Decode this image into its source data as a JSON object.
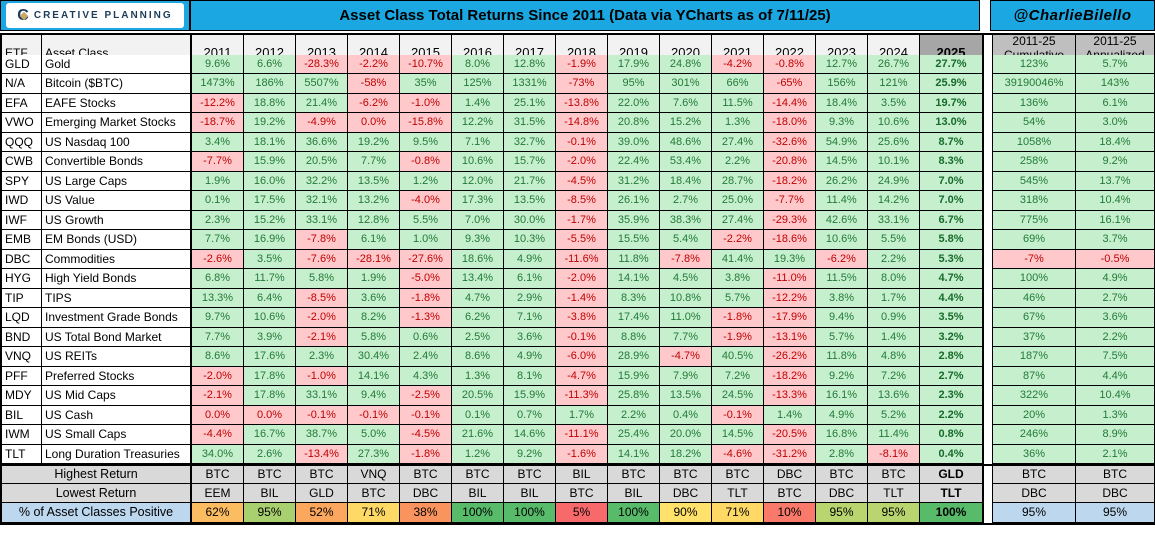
{
  "banner": {
    "logo_text": "CREATIVE PLANNING",
    "logo_mark": "C",
    "title": "Asset Class Total Returns Since 2011 (Data via YCharts as of 7/11/25)",
    "handle": "@CharlieBilello"
  },
  "colors": {
    "banner_blue": "#1BA8E2",
    "positive_bg": "#C6EFCE",
    "positive_text": "#217A36",
    "negative_bg": "#FFC9CC",
    "negative_text": "#C00000",
    "header_2025_bg": "#A6A6A6",
    "right_header_bg": "#BFBFBF",
    "footer_gray": "#D9D9D9",
    "footer_blue": "#BDD7EE"
  },
  "chart_data": {
    "type": "table",
    "title": "Asset Class Total Returns Since 2011 (Data via YCharts as of 7/11/25)",
    "corner_headers": [
      "ETF",
      "Asset Class"
    ],
    "year_headers": [
      "2011",
      "2012",
      "2013",
      "2014",
      "2015",
      "2016",
      "2017",
      "2018",
      "2019",
      "2020",
      "2021",
      "2022",
      "2023",
      "2024",
      "2025"
    ],
    "right_headers": [
      [
        "2011-25",
        "Cumulative"
      ],
      [
        "2011-25",
        "Annualized"
      ]
    ],
    "rows": [
      {
        "etf": "GLD",
        "name": "Gold",
        "cells": [
          "9.6%",
          "6.6%",
          "-28.3%",
          "-2.2%",
          "-10.7%",
          "8.0%",
          "12.8%",
          "-1.9%",
          "17.9%",
          "24.8%",
          "-4.2%",
          "-0.8%",
          "12.7%",
          "26.7%",
          "27.7%"
        ],
        "cum": "123%",
        "ann": "5.7%"
      },
      {
        "etf": "N/A",
        "name": "Bitcoin ($BTC)",
        "cells": [
          "1473%",
          "186%",
          "5507%",
          "-58%",
          "35%",
          "125%",
          "1331%",
          "-73%",
          "95%",
          "301%",
          "66%",
          "-65%",
          "156%",
          "121%",
          "25.9%"
        ],
        "cum": "39190046%",
        "ann": "143%"
      },
      {
        "etf": "EFA",
        "name": "EAFE Stocks",
        "cells": [
          "-12.2%",
          "18.8%",
          "21.4%",
          "-6.2%",
          "-1.0%",
          "1.4%",
          "25.1%",
          "-13.8%",
          "22.0%",
          "7.6%",
          "11.5%",
          "-14.4%",
          "18.4%",
          "3.5%",
          "19.7%"
        ],
        "cum": "136%",
        "ann": "6.1%"
      },
      {
        "etf": "VWO",
        "name": "Emerging Market Stocks",
        "cells": [
          "-18.7%",
          "19.2%",
          "-4.9%",
          "0.0%",
          "-15.8%",
          "12.2%",
          "31.5%",
          "-14.8%",
          "20.8%",
          "15.2%",
          "1.3%",
          "-18.0%",
          "9.3%",
          "10.6%",
          "13.0%"
        ],
        "cum": "54%",
        "ann": "3.0%",
        "neg_overrides": [
          3
        ]
      },
      {
        "etf": "QQQ",
        "name": "US Nasdaq 100",
        "cells": [
          "3.4%",
          "18.1%",
          "36.6%",
          "19.2%",
          "9.5%",
          "7.1%",
          "32.7%",
          "-0.1%",
          "39.0%",
          "48.6%",
          "27.4%",
          "-32.6%",
          "54.9%",
          "25.6%",
          "8.7%"
        ],
        "cum": "1058%",
        "ann": "18.4%"
      },
      {
        "etf": "CWB",
        "name": "Convertible Bonds",
        "cells": [
          "-7.7%",
          "15.9%",
          "20.5%",
          "7.7%",
          "-0.8%",
          "10.6%",
          "15.7%",
          "-2.0%",
          "22.4%",
          "53.4%",
          "2.2%",
          "-20.8%",
          "14.5%",
          "10.1%",
          "8.3%"
        ],
        "cum": "258%",
        "ann": "9.2%"
      },
      {
        "etf": "SPY",
        "name": "US Large Caps",
        "cells": [
          "1.9%",
          "16.0%",
          "32.2%",
          "13.5%",
          "1.2%",
          "12.0%",
          "21.7%",
          "-4.5%",
          "31.2%",
          "18.4%",
          "28.7%",
          "-18.2%",
          "26.2%",
          "24.9%",
          "7.0%"
        ],
        "cum": "545%",
        "ann": "13.7%"
      },
      {
        "etf": "IWD",
        "name": "US Value",
        "cells": [
          "0.1%",
          "17.5%",
          "32.1%",
          "13.2%",
          "-4.0%",
          "17.3%",
          "13.5%",
          "-8.5%",
          "26.1%",
          "2.7%",
          "25.0%",
          "-7.7%",
          "11.4%",
          "14.2%",
          "7.0%"
        ],
        "cum": "318%",
        "ann": "10.4%"
      },
      {
        "etf": "IWF",
        "name": "US Growth",
        "cells": [
          "2.3%",
          "15.2%",
          "33.1%",
          "12.8%",
          "5.5%",
          "7.0%",
          "30.0%",
          "-1.7%",
          "35.9%",
          "38.3%",
          "27.4%",
          "-29.3%",
          "42.6%",
          "33.1%",
          "6.7%"
        ],
        "cum": "775%",
        "ann": "16.1%"
      },
      {
        "etf": "EMB",
        "name": "EM Bonds (USD)",
        "cells": [
          "7.7%",
          "16.9%",
          "-7.8%",
          "6.1%",
          "1.0%",
          "9.3%",
          "10.3%",
          "-5.5%",
          "15.5%",
          "5.4%",
          "-2.2%",
          "-18.6%",
          "10.6%",
          "5.5%",
          "5.8%"
        ],
        "cum": "69%",
        "ann": "3.7%"
      },
      {
        "etf": "DBC",
        "name": "Commodities",
        "cells": [
          "-2.6%",
          "3.5%",
          "-7.6%",
          "-28.1%",
          "-27.6%",
          "18.6%",
          "4.9%",
          "-11.6%",
          "11.8%",
          "-7.8%",
          "41.4%",
          "19.3%",
          "-6.2%",
          "2.2%",
          "5.3%"
        ],
        "cum": "-7%",
        "ann": "-0.5%"
      },
      {
        "etf": "HYG",
        "name": "High Yield Bonds",
        "cells": [
          "6.8%",
          "11.7%",
          "5.8%",
          "1.9%",
          "-5.0%",
          "13.4%",
          "6.1%",
          "-2.0%",
          "14.1%",
          "4.5%",
          "3.8%",
          "-11.0%",
          "11.5%",
          "8.0%",
          "4.7%"
        ],
        "cum": "100%",
        "ann": "4.9%"
      },
      {
        "etf": "TIP",
        "name": "TIPS",
        "cells": [
          "13.3%",
          "6.4%",
          "-8.5%",
          "3.6%",
          "-1.8%",
          "4.7%",
          "2.9%",
          "-1.4%",
          "8.3%",
          "10.8%",
          "5.7%",
          "-12.2%",
          "3.8%",
          "1.7%",
          "4.4%"
        ],
        "cum": "46%",
        "ann": "2.7%"
      },
      {
        "etf": "LQD",
        "name": "Investment Grade Bonds",
        "cells": [
          "9.7%",
          "10.6%",
          "-2.0%",
          "8.2%",
          "-1.3%",
          "6.2%",
          "7.1%",
          "-3.8%",
          "17.4%",
          "11.0%",
          "-1.8%",
          "-17.9%",
          "9.4%",
          "0.9%",
          "3.5%"
        ],
        "cum": "67%",
        "ann": "3.6%"
      },
      {
        "etf": "BND",
        "name": "US Total Bond Market",
        "cells": [
          "7.7%",
          "3.9%",
          "-2.1%",
          "5.8%",
          "0.6%",
          "2.5%",
          "3.6%",
          "-0.1%",
          "8.8%",
          "7.7%",
          "-1.9%",
          "-13.1%",
          "5.7%",
          "1.4%",
          "3.2%"
        ],
        "cum": "37%",
        "ann": "2.2%"
      },
      {
        "etf": "VNQ",
        "name": "US REITs",
        "cells": [
          "8.6%",
          "17.6%",
          "2.3%",
          "30.4%",
          "2.4%",
          "8.6%",
          "4.9%",
          "-6.0%",
          "28.9%",
          "-4.7%",
          "40.5%",
          "-26.2%",
          "11.8%",
          "4.8%",
          "2.8%"
        ],
        "cum": "187%",
        "ann": "7.5%"
      },
      {
        "etf": "PFF",
        "name": "Preferred Stocks",
        "cells": [
          "-2.0%",
          "17.8%",
          "-1.0%",
          "14.1%",
          "4.3%",
          "1.3%",
          "8.1%",
          "-4.7%",
          "15.9%",
          "7.9%",
          "7.2%",
          "-18.2%",
          "9.2%",
          "7.2%",
          "2.7%"
        ],
        "cum": "87%",
        "ann": "4.4%"
      },
      {
        "etf": "MDY",
        "name": "US Mid Caps",
        "cells": [
          "-2.1%",
          "17.8%",
          "33.1%",
          "9.4%",
          "-2.5%",
          "20.5%",
          "15.9%",
          "-11.3%",
          "25.8%",
          "13.5%",
          "24.5%",
          "-13.3%",
          "16.1%",
          "13.6%",
          "2.3%"
        ],
        "cum": "322%",
        "ann": "10.4%"
      },
      {
        "etf": "BIL",
        "name": "US Cash",
        "cells": [
          "0.0%",
          "0.0%",
          "-0.1%",
          "-0.1%",
          "-0.1%",
          "0.1%",
          "0.7%",
          "1.7%",
          "2.2%",
          "0.4%",
          "-0.1%",
          "1.4%",
          "4.9%",
          "5.2%",
          "2.2%"
        ],
        "cum": "20%",
        "ann": "1.3%",
        "neg_overrides": [
          0,
          1
        ]
      },
      {
        "etf": "IWM",
        "name": "US Small Caps",
        "cells": [
          "-4.4%",
          "16.7%",
          "38.7%",
          "5.0%",
          "-4.5%",
          "21.6%",
          "14.6%",
          "-11.1%",
          "25.4%",
          "20.0%",
          "14.5%",
          "-20.5%",
          "16.8%",
          "11.4%",
          "0.8%"
        ],
        "cum": "246%",
        "ann": "8.9%"
      },
      {
        "etf": "TLT",
        "name": "Long Duration Treasuries",
        "cells": [
          "34.0%",
          "2.6%",
          "-13.4%",
          "27.3%",
          "-1.8%",
          "1.2%",
          "9.2%",
          "-1.6%",
          "14.1%",
          "18.2%",
          "-4.6%",
          "-31.2%",
          "2.8%",
          "-8.1%",
          "0.4%"
        ],
        "cum": "36%",
        "ann": "2.1%"
      }
    ],
    "footer": {
      "highest_label": "Highest Return",
      "highest": [
        "BTC",
        "BTC",
        "BTC",
        "VNQ",
        "BTC",
        "BTC",
        "BTC",
        "BIL",
        "BTC",
        "BTC",
        "BTC",
        "DBC",
        "BTC",
        "BTC",
        "GLD"
      ],
      "highest_right": [
        "BTC",
        "BTC"
      ],
      "lowest_label": "Lowest Return",
      "lowest": [
        "EEM",
        "BIL",
        "GLD",
        "BTC",
        "DBC",
        "BIL",
        "BIL",
        "BTC",
        "BIL",
        "DBC",
        "TLT",
        "BTC",
        "DBC",
        "TLT",
        "TLT"
      ],
      "lowest_right": [
        "DBC",
        "DBC"
      ],
      "pct_label": "% of Asset Classes Positive",
      "pct": [
        "62%",
        "95%",
        "52%",
        "71%",
        "38%",
        "100%",
        "100%",
        "5%",
        "100%",
        "90%",
        "71%",
        "10%",
        "95%",
        "95%",
        "100%"
      ],
      "pct_colors": [
        "#FCBC62",
        "#A9D06E",
        "#FBA75E",
        "#FED966",
        "#F9945F",
        "#57BB6A",
        "#57BB6A",
        "#F8696B",
        "#57BB6A",
        "#FFE16B",
        "#FED966",
        "#F9796B",
        "#B9D56F",
        "#B9D56F",
        "#57BB6A"
      ],
      "pct_right": [
        "95%",
        "95%"
      ]
    }
  }
}
